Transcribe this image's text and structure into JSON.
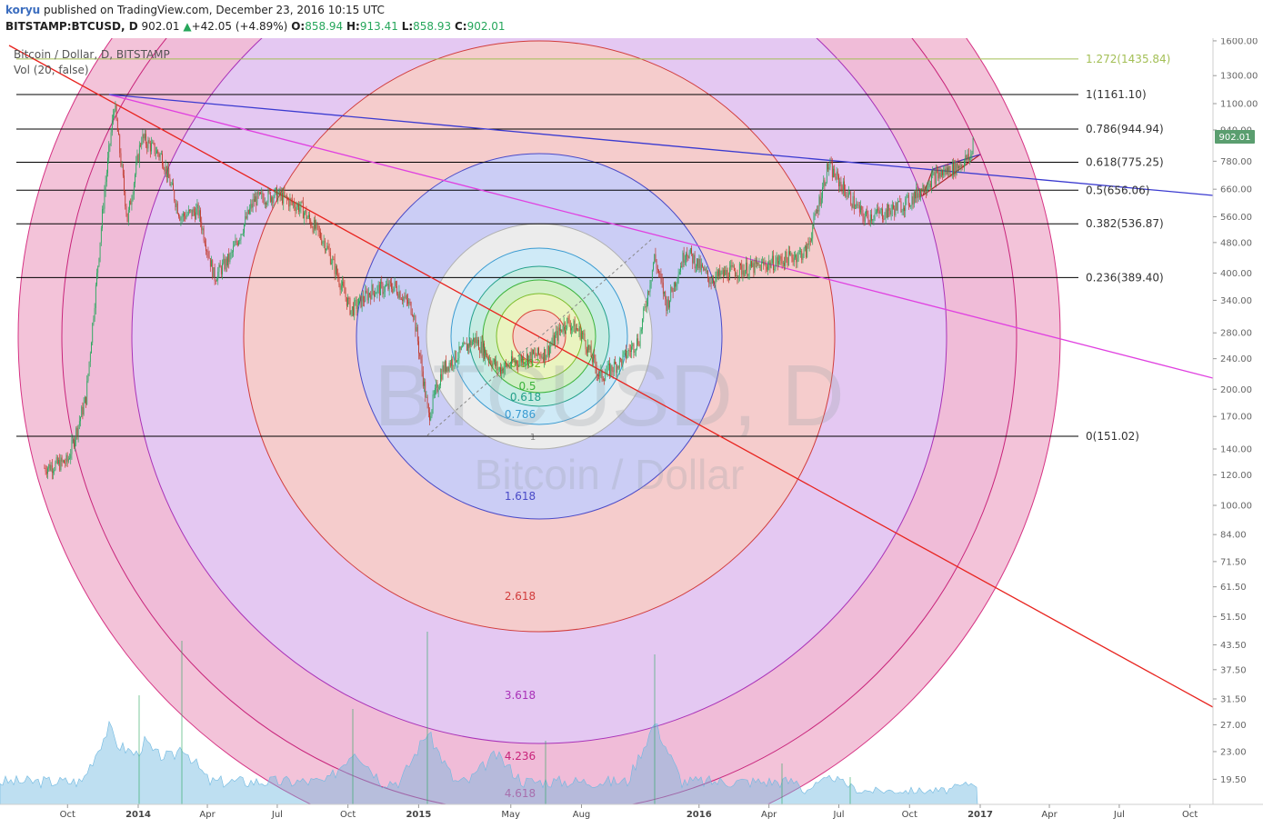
{
  "header": {
    "user": "koryu",
    "published_text": " published on TradingView.com, December 23, 2016 10:15 UTC",
    "symbol": "BITSTAMP:BTCUSD, D",
    "price": "902.01",
    "arrow": "▲",
    "change": "+42.05 (+4.89%)",
    "o_label": "O:",
    "o_value": "858.94",
    "h_label": "H:",
    "h_value": "913.41",
    "l_label": "L:",
    "l_value": "858.93",
    "c_label": "C:",
    "c_value": "902.01"
  },
  "legend": {
    "title": "Bitcoin / Dollar, D, BITSTAMP",
    "vol": "Vol (20, false)"
  },
  "watermark": {
    "symbol": "BTCUSD, D",
    "name": "Bitcoin / Dollar"
  },
  "colors": {
    "up": "#26a65b",
    "down": "#c0392b",
    "volume": "#6fb8e0",
    "price_badge": "#5a9e6f",
    "fib_line": "#000000",
    "ext_line": "#a3bf55"
  },
  "chart_data": {
    "type": "candlestick",
    "title": "Bitcoin / Dollar, D, BITSTAMP",
    "y_scale": "log",
    "y_ticks": [
      1600,
      1300,
      1100,
      940,
      780,
      660,
      560,
      480,
      400,
      340,
      280,
      240,
      200,
      170,
      140,
      120,
      100,
      84,
      71.5,
      61.5,
      51.5,
      43.5,
      37.5,
      31.5,
      27,
      23,
      19.5
    ],
    "x_ticks": [
      "Oct",
      "2014",
      "Apr",
      "Jul",
      "Oct",
      "2015",
      "May",
      "Aug",
      "2016",
      "Apr",
      "Jul",
      "Oct",
      "2017",
      "Apr",
      "Jul",
      "Oct"
    ],
    "last_price": "902.01",
    "price_path": [
      [
        "2013-09-01",
        125
      ],
      [
        "2013-10-01",
        130
      ],
      [
        "2013-10-25",
        190
      ],
      [
        "2013-11-18",
        650
      ],
      [
        "2013-12-01",
        1100
      ],
      [
        "2013-12-18",
        550
      ],
      [
        "2014-01-05",
        900
      ],
      [
        "2014-02-01",
        800
      ],
      [
        "2014-02-25",
        560
      ],
      [
        "2014-03-20",
        580
      ],
      [
        "2014-04-10",
        390
      ],
      [
        "2014-05-01",
        440
      ],
      [
        "2014-06-01",
        620
      ],
      [
        "2014-07-01",
        640
      ],
      [
        "2014-08-01",
        590
      ],
      [
        "2014-09-01",
        480
      ],
      [
        "2014-10-05",
        320
      ],
      [
        "2014-11-01",
        360
      ],
      [
        "2014-12-01",
        370
      ],
      [
        "2014-12-25",
        320
      ],
      [
        "2015-01-14",
        170
      ],
      [
        "2015-02-01",
        225
      ],
      [
        "2015-03-15",
        270
      ],
      [
        "2015-04-15",
        225
      ],
      [
        "2015-05-15",
        240
      ],
      [
        "2015-06-15",
        248
      ],
      [
        "2015-07-12",
        300
      ],
      [
        "2015-08-01",
        280
      ],
      [
        "2015-08-25",
        215
      ],
      [
        "2015-09-20",
        235
      ],
      [
        "2015-10-15",
        270
      ],
      [
        "2015-11-04",
        440
      ],
      [
        "2015-11-20",
        330
      ],
      [
        "2015-12-15",
        460
      ],
      [
        "2016-01-15",
        385
      ],
      [
        "2016-02-15",
        405
      ],
      [
        "2016-03-15",
        415
      ],
      [
        "2016-04-15",
        430
      ],
      [
        "2016-05-20",
        455
      ],
      [
        "2016-06-17",
        760
      ],
      [
        "2016-07-10",
        650
      ],
      [
        "2016-08-02",
        560
      ],
      [
        "2016-09-01",
        575
      ],
      [
        "2016-10-01",
        615
      ],
      [
        "2016-11-01",
        710
      ],
      [
        "2016-12-01",
        755
      ],
      [
        "2016-12-20",
        800
      ],
      [
        "2016-12-23",
        902.01
      ]
    ],
    "fib_retracement": [
      {
        "level": "1.272",
        "value": "1435.84"
      },
      {
        "level": "1",
        "value": "1161.10"
      },
      {
        "level": "0.786",
        "value": "944.94"
      },
      {
        "level": "0.618",
        "value": "775.25"
      },
      {
        "level": "0.5",
        "value": "656.06"
      },
      {
        "level": "0.382",
        "value": "536.87"
      },
      {
        "level": "0.236",
        "value": "389.40"
      },
      {
        "level": "0",
        "value": "151.02"
      }
    ],
    "fib_circles": [
      "0.236",
      "0.382",
      "0.5",
      "0.618",
      "0.786",
      "1",
      "1.618",
      "2.618",
      "3.618",
      "4.236",
      "4.618"
    ]
  }
}
